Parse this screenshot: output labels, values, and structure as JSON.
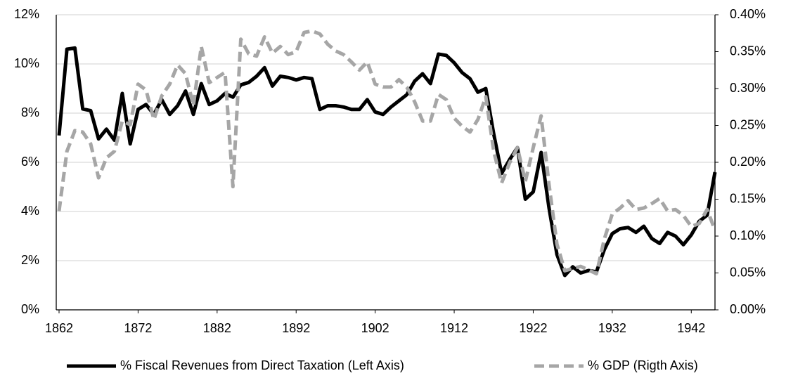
{
  "chart_data": {
    "type": "line",
    "x": [
      1862,
      1863,
      1864,
      1865,
      1866,
      1867,
      1868,
      1869,
      1870,
      1871,
      1872,
      1873,
      1874,
      1875,
      1876,
      1877,
      1878,
      1879,
      1880,
      1881,
      1882,
      1883,
      1884,
      1885,
      1886,
      1887,
      1888,
      1889,
      1890,
      1891,
      1892,
      1893,
      1894,
      1895,
      1896,
      1897,
      1898,
      1899,
      1900,
      1901,
      1902,
      1903,
      1904,
      1905,
      1906,
      1907,
      1908,
      1909,
      1910,
      1911,
      1912,
      1913,
      1914,
      1915,
      1916,
      1917,
      1918,
      1919,
      1920,
      1921,
      1922,
      1923,
      1924,
      1925,
      1926,
      1927,
      1928,
      1929,
      1930,
      1931,
      1932,
      1933,
      1934,
      1935,
      1936,
      1937,
      1938,
      1939,
      1940,
      1941,
      1942,
      1943,
      1944,
      1945
    ],
    "series": [
      {
        "name": "% Fiscal Revenues from Direct Taxation (Left Axis)",
        "color": "#000000",
        "line_style": "solid",
        "axis": "y",
        "values": [
          7.09,
          10.6,
          10.65,
          8.17,
          8.1,
          6.95,
          7.35,
          6.9,
          8.8,
          6.75,
          8.15,
          8.35,
          7.95,
          8.55,
          7.95,
          8.3,
          8.9,
          7.95,
          9.2,
          8.35,
          8.5,
          8.8,
          8.65,
          9.15,
          9.25,
          9.5,
          9.85,
          9.1,
          9.5,
          9.45,
          9.35,
          9.45,
          9.4,
          8.15,
          8.3,
          8.3,
          8.25,
          8.15,
          8.15,
          8.55,
          8.05,
          7.95,
          8.25,
          8.5,
          8.75,
          9.3,
          9.6,
          9.2,
          10.4,
          10.35,
          10.05,
          9.65,
          9.4,
          8.85,
          9.0,
          7.15,
          5.55,
          6.1,
          6.6,
          4.5,
          4.8,
          6.4,
          4.15,
          2.25,
          1.4,
          1.75,
          1.5,
          1.6,
          1.55,
          2.45,
          3.1,
          3.3,
          3.35,
          3.15,
          3.4,
          2.9,
          2.7,
          3.15,
          3.0,
          2.65,
          3.05,
          3.6,
          3.85,
          5.6
        ]
      },
      {
        "name": "% GDP (Rigth Axis)",
        "color": "#a6a6a6",
        "line_style": "dashed",
        "axis": "y2",
        "values": [
          0.134,
          0.215,
          0.243,
          0.241,
          0.225,
          0.179,
          0.206,
          0.215,
          0.256,
          0.251,
          0.306,
          0.298,
          0.258,
          0.29,
          0.306,
          0.332,
          0.32,
          0.277,
          0.357,
          0.308,
          0.315,
          0.322,
          0.167,
          0.367,
          0.347,
          0.344,
          0.37,
          0.348,
          0.357,
          0.346,
          0.35,
          0.376,
          0.378,
          0.374,
          0.36,
          0.351,
          0.346,
          0.336,
          0.325,
          0.336,
          0.306,
          0.302,
          0.302,
          0.312,
          0.302,
          0.282,
          0.256,
          0.256,
          0.292,
          0.285,
          0.26,
          0.249,
          0.241,
          0.258,
          0.289,
          0.215,
          0.172,
          0.199,
          0.22,
          0.174,
          0.22,
          0.263,
          0.17,
          0.089,
          0.053,
          0.056,
          0.059,
          0.054,
          0.049,
          0.096,
          0.13,
          0.138,
          0.148,
          0.136,
          0.138,
          0.144,
          0.151,
          0.134,
          0.136,
          0.128,
          0.113,
          0.117,
          0.136,
          0.108
        ]
      }
    ],
    "xlim": [
      1862,
      1945
    ],
    "xticks": [
      1862,
      1872,
      1882,
      1892,
      1902,
      1912,
      1922,
      1932,
      1942
    ],
    "ylim": [
      0,
      12
    ],
    "yticks": [
      {
        "value": 0,
        "label": "0%"
      },
      {
        "value": 2,
        "label": "2%"
      },
      {
        "value": 4,
        "label": "4%"
      },
      {
        "value": 6,
        "label": "6%"
      },
      {
        "value": 8,
        "label": "8%"
      },
      {
        "value": 10,
        "label": "10%"
      },
      {
        "value": 12,
        "label": "12%"
      }
    ],
    "y2lim": [
      0,
      0.4
    ],
    "y2ticks": [
      {
        "value": 0,
        "label": "0.00%"
      },
      {
        "value": 0.05,
        "label": "0.05%"
      },
      {
        "value": 0.1,
        "label": "0.10%"
      },
      {
        "value": 0.15,
        "label": "0.15%"
      },
      {
        "value": 0.2,
        "label": "0.20%"
      },
      {
        "value": 0.25,
        "label": "0.25%"
      },
      {
        "value": 0.3,
        "label": "0.30%"
      },
      {
        "value": 0.35,
        "label": "0.35%"
      },
      {
        "value": 0.4,
        "label": "0.40%"
      }
    ],
    "grid": true,
    "legend": "bottom"
  }
}
